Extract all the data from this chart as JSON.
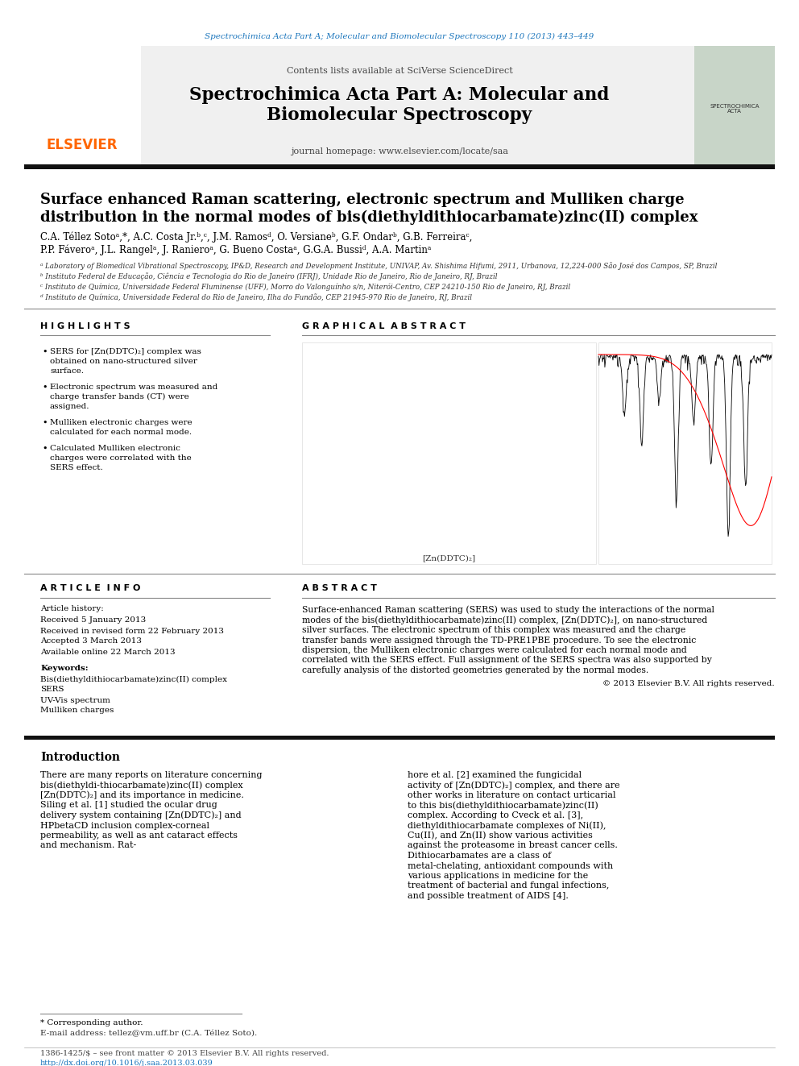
{
  "journal_header_text": "Spectrochimica Acta Part A; Molecular and Biomolecular Spectroscopy 110 (2013) 443–449",
  "journal_name_line1": "Spectrochimica Acta Part A: Molecular and",
  "journal_name_line2": "Biomolecular Spectroscopy",
  "contents_text": "Contents lists available at SciVerse ScienceDirect",
  "homepage_text": "journal homepage: www.elsevier.com/locate/saa",
  "title_line1": "Surface enhanced Raman scattering, electronic spectrum and Mulliken charge",
  "title_line2": "distribution in the normal modes of bis(diethyldithiocarbamate)zinc(II) complex",
  "authors": "C.A. Téllez Sotoᵃ,*, A.C. Costa Jr.ᵇ,ᶜ, J.M. Ramosᵈ, O. Versianeᵇ, G.F. Ondarᵇ, G.B. Ferreiraᶜ,",
  "authors2": "P.P. Fáveroᵃ, J.L. Rangelᵃ, J. Ranieroᵃ, G. Bueno Costaᵃ, G.G.A. Bussiᵈ, A.A. Martinᵃ",
  "aff_a": "ᵃ Laboratory of Biomedical Vibrational Spectroscopy, IP&D, Research and Development Institute, UNIVAP, Av. Shishima Hifumi, 2911, Urbanova, 12,224-000 São José dos Campos, SP, Brazil",
  "aff_b": "ᵇ Instituto Federal de Educação, Ciência e Tecnologia do Rio de Janeiro (IFRJ), Unidade Rio de Janeiro, Rio de Janeiro, RJ, Brazil",
  "aff_c": "ᶜ Instituto de Química, Universidade Federal Fluminense (UFF), Morro do Valonguínho s/n, Niterói-Centro, CEP 24210-150 Rio de Janeiro, RJ, Brazil",
  "aff_d": "ᵈ Instituto de Química, Universidade Federal do Rio de Janeiro, Ilha do Fundão, CEP 21945-970 Rio de Janeiro, RJ, Brazil",
  "highlights_title": "H I G H L I G H T S",
  "highlights": [
    "SERS for [Zn(DDTC)₂] complex was obtained on nano-structured silver surface.",
    "Electronic spectrum was measured and charge transfer bands (CT) were assigned.",
    "Mulliken electronic charges were calculated for each normal mode.",
    "Calculated Mulliken electronic charges were correlated with the SERS effect."
  ],
  "graphical_abstract_title": "G R A P H I C A L  A B S T R A C T",
  "article_info_title": "A R T I C L E  I N F O",
  "article_history": "Article history:",
  "received": "Received 5 January 2013",
  "revised": "Received in revised form 22 February 2013",
  "accepted": "Accepted 3 March 2013",
  "available": "Available online 22 March 2013",
  "keywords_title": "Keywords:",
  "keywords": [
    "Bis(diethyldithiocarbamate)zinc(II) complex",
    "SERS",
    "UV-Vis spectrum",
    "Mulliken charges"
  ],
  "abstract_title": "A B S T R A C T",
  "abstract_text": "Surface-enhanced Raman scattering (SERS) was used to study the interactions of the normal modes of the bis(diethyldithiocarbamate)zinc(II) complex, [Zn(DDTC)₂], on nano-structured silver surfaces. The electronic spectrum of this complex was measured and the charge transfer bands were assigned through the TD-PRE1PBE procedure. To see the electronic dispersion, the Mulliken electronic charges were calculated for each normal mode and correlated with the SERS effect. Full assignment of the SERS spectra was also supported by carefully analysis of the distorted geometries generated by the normal modes.",
  "copyright": "© 2013 Elsevier B.V. All rights reserved.",
  "intro_title": "Introduction",
  "intro_col1": "There are many reports on literature concerning bis(diethyldi-thiocarbamate)zinc(II) complex [Zn(DDTC)₂] and its importance in medicine. Siling et al. [1] studied the ocular drug delivery system containing [Zn(DDTC)₂] and HPbetaCD inclusion complex-corneal permeability, as well as ant cataract effects and mechanism. Rat-",
  "intro_col2": "hore et al. [2] examined the fungicidal activity of [Zn(DDTC)₂] complex, and there are other works in literature on contact urticarial to this bis(diethyldithiocarbamate)zinc(II) complex. According to Cveck et al. [3], diethyldithiocarbamate complexes of Ni(II), Cu(II), and Zn(II) show various activities against the proteasome in breast cancer cells. Dithiocarbamates are a class of metal-chelating, antioxidant compounds with various applications in medicine for the treatment of bacterial and fungal infections, and possible treatment of AIDS [4].",
  "footnote_corresponding": "* Corresponding author.",
  "footnote_email": "E-mail address: tellez@vm.uff.br (C.A. Téllez Soto).",
  "footer1": "1386-1425/$ – see front matter © 2013 Elsevier B.V. All rights reserved.",
  "footer2": "http://dx.doi.org/10.1016/j.saa.2013.03.039",
  "bg_color": "#ffffff",
  "header_bg": "#f0f0f0",
  "elsevier_color": "#ff6600",
  "link_color": "#1a75bc",
  "journal_header_color": "#1a75bc"
}
